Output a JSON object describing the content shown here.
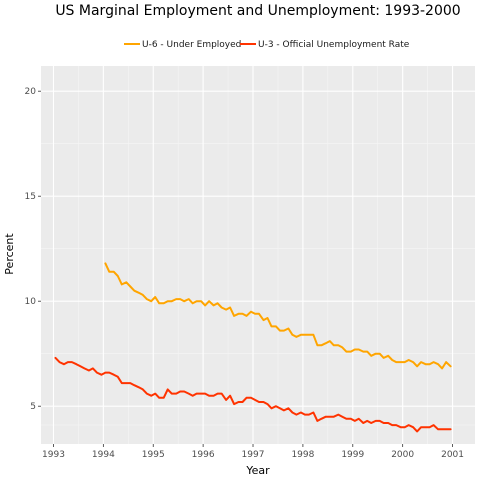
{
  "chart_data": {
    "type": "line",
    "title": "US Marginal Employment and Unemployment:  1993-2000",
    "xlabel": "Year",
    "ylabel": "Percent",
    "xlim": [
      1992.75,
      2001.45
    ],
    "ylim": [
      3.2,
      21.2
    ],
    "x_ticks": [
      1993,
      1994,
      1995,
      1996,
      1997,
      1998,
      1999,
      2000,
      2001
    ],
    "y_ticks": [
      5,
      10,
      15,
      20
    ],
    "grid": true,
    "legend_position": "top",
    "series": [
      {
        "name": "U-6 - Under Employed",
        "color": "#ffa500",
        "x": [
          1994.04,
          1994.12,
          1994.21,
          1994.29,
          1994.37,
          1994.46,
          1994.54,
          1994.62,
          1994.71,
          1994.79,
          1994.87,
          1994.96,
          1995.04,
          1995.12,
          1995.21,
          1995.29,
          1995.37,
          1995.46,
          1995.54,
          1995.62,
          1995.71,
          1995.79,
          1995.87,
          1995.96,
          1996.04,
          1996.12,
          1996.21,
          1996.29,
          1996.37,
          1996.46,
          1996.54,
          1996.62,
          1996.71,
          1996.79,
          1996.87,
          1996.96,
          1997.04,
          1997.12,
          1997.21,
          1997.29,
          1997.37,
          1997.46,
          1997.54,
          1997.62,
          1997.71,
          1997.79,
          1997.87,
          1997.96,
          1998.04,
          1998.12,
          1998.21,
          1998.29,
          1998.37,
          1998.46,
          1998.54,
          1998.62,
          1998.71,
          1998.79,
          1998.87,
          1998.96,
          1999.04,
          1999.12,
          1999.21,
          1999.29,
          1999.37,
          1999.46,
          1999.54,
          1999.62,
          1999.71,
          1999.79,
          1999.87,
          1999.96,
          2000.04,
          2000.12,
          2000.21,
          2000.29,
          2000.37,
          2000.46,
          2000.54,
          2000.62,
          2000.71,
          2000.79,
          2000.87,
          2000.96
        ],
        "values": [
          11.8,
          11.4,
          11.4,
          11.2,
          10.8,
          10.9,
          10.7,
          10.5,
          10.4,
          10.3,
          10.1,
          10.0,
          10.2,
          9.9,
          9.9,
          10.0,
          10.0,
          10.1,
          10.1,
          10.0,
          10.1,
          9.9,
          10.0,
          10.0,
          9.8,
          10.0,
          9.8,
          9.9,
          9.7,
          9.6,
          9.7,
          9.3,
          9.4,
          9.4,
          9.3,
          9.5,
          9.4,
          9.4,
          9.1,
          9.2,
          8.8,
          8.8,
          8.6,
          8.6,
          8.7,
          8.4,
          8.3,
          8.4,
          8.4,
          8.4,
          8.4,
          7.9,
          7.9,
          8.0,
          8.1,
          7.9,
          7.9,
          7.8,
          7.6,
          7.6,
          7.7,
          7.7,
          7.6,
          7.6,
          7.4,
          7.5,
          7.5,
          7.3,
          7.4,
          7.2,
          7.1,
          7.1,
          7.1,
          7.2,
          7.1,
          6.9,
          7.1,
          7.0,
          7.0,
          7.1,
          7.0,
          6.8,
          7.1,
          6.9
        ]
      },
      {
        "name": "U-3 - Official Unemployment Rate",
        "color": "#ff3300",
        "x": [
          1993.04,
          1993.12,
          1993.21,
          1993.29,
          1993.37,
          1993.46,
          1993.54,
          1993.62,
          1993.71,
          1993.79,
          1993.87,
          1993.96,
          1994.04,
          1994.12,
          1994.21,
          1994.29,
          1994.37,
          1994.46,
          1994.54,
          1994.62,
          1994.71,
          1994.79,
          1994.87,
          1994.96,
          1995.04,
          1995.12,
          1995.21,
          1995.29,
          1995.37,
          1995.46,
          1995.54,
          1995.62,
          1995.71,
          1995.79,
          1995.87,
          1995.96,
          1996.04,
          1996.12,
          1996.21,
          1996.29,
          1996.37,
          1996.46,
          1996.54,
          1996.62,
          1996.71,
          1996.79,
          1996.87,
          1996.96,
          1997.04,
          1997.12,
          1997.21,
          1997.29,
          1997.37,
          1997.46,
          1997.54,
          1997.62,
          1997.71,
          1997.79,
          1997.87,
          1997.96,
          1998.04,
          1998.12,
          1998.21,
          1998.29,
          1998.37,
          1998.46,
          1998.54,
          1998.62,
          1998.71,
          1998.79,
          1998.87,
          1998.96,
          1999.04,
          1999.12,
          1999.21,
          1999.29,
          1999.37,
          1999.46,
          1999.54,
          1999.62,
          1999.71,
          1999.79,
          1999.87,
          1999.96,
          2000.04,
          2000.12,
          2000.21,
          2000.29,
          2000.37,
          2000.46,
          2000.54,
          2000.62,
          2000.71,
          2000.79,
          2000.87,
          2000.96
        ],
        "values": [
          7.3,
          7.1,
          7.0,
          7.1,
          7.1,
          7.0,
          6.9,
          6.8,
          6.7,
          6.8,
          6.6,
          6.5,
          6.6,
          6.6,
          6.5,
          6.4,
          6.1,
          6.1,
          6.1,
          6.0,
          5.9,
          5.8,
          5.6,
          5.5,
          5.6,
          5.4,
          5.4,
          5.8,
          5.6,
          5.6,
          5.7,
          5.7,
          5.6,
          5.5,
          5.6,
          5.6,
          5.6,
          5.5,
          5.5,
          5.6,
          5.6,
          5.3,
          5.5,
          5.1,
          5.2,
          5.2,
          5.4,
          5.4,
          5.3,
          5.2,
          5.2,
          5.1,
          4.9,
          5.0,
          4.9,
          4.8,
          4.9,
          4.7,
          4.6,
          4.7,
          4.6,
          4.6,
          4.7,
          4.3,
          4.4,
          4.5,
          4.5,
          4.5,
          4.6,
          4.5,
          4.4,
          4.4,
          4.3,
          4.4,
          4.2,
          4.3,
          4.2,
          4.3,
          4.3,
          4.2,
          4.2,
          4.1,
          4.1,
          4.0,
          4.0,
          4.1,
          4.0,
          3.8,
          4.0,
          4.0,
          4.0,
          4.1,
          3.9,
          3.9,
          3.9,
          3.9
        ]
      }
    ]
  }
}
